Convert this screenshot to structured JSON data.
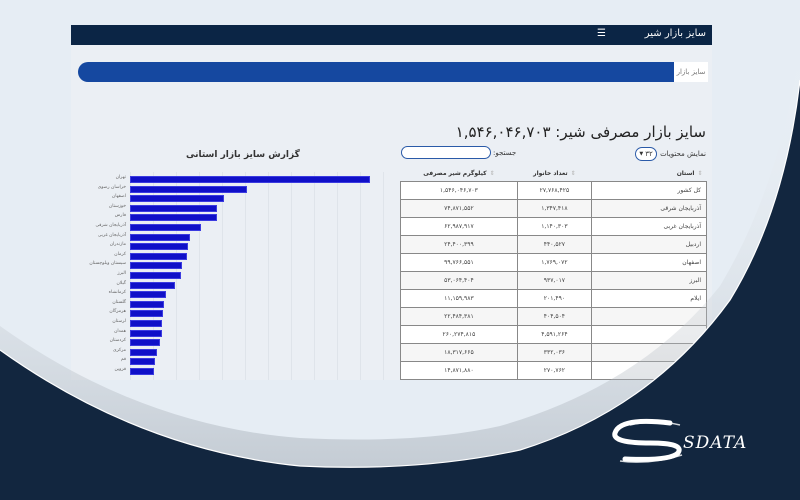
{
  "header": {
    "title": "سایز بازار شیر",
    "menu_icon": "hamburger-icon"
  },
  "breadcrumb": {
    "label": "سایز بازار"
  },
  "main": {
    "title": "سایز بازار مصرفی شیر: ۱,۵۴۶,۰۴۶,۷۰۳",
    "show_entries_label": "نمایش محتویات",
    "show_entries_value": "۳۲",
    "search_label": "جستجو:",
    "search_value": ""
  },
  "table": {
    "headers": [
      "استان",
      "تعداد خانوار",
      "کیلوگرم شیر مصرفی"
    ],
    "rows": [
      {
        "province": "کل کشور",
        "households": "۲۷,۷۶۸,۴۲۵",
        "kg": "۱,۵۴۶,۰۴۶,۷۰۳"
      },
      {
        "province": "آذربایجان شرقی",
        "households": "۱,۳۴۷,۴۱۸",
        "kg": "۷۴,۸۷۱,۵۵۲"
      },
      {
        "province": "آذربایجان غربی",
        "households": "۱,۱۴۰,۳۰۳",
        "kg": "۶۲,۹۸۷,۹۱۷"
      },
      {
        "province": "اردبیل",
        "households": "۴۴۰,۵۲۷",
        "kg": "۲۴,۴۰۰,۳۹۹"
      },
      {
        "province": "اصفهان",
        "households": "۱,۷۶۹,۰۷۲",
        "kg": "۹۹,۷۶۶,۵۵۱"
      },
      {
        "province": "البرز",
        "households": "۹۳۷,۰۱۷",
        "kg": "۵۳,۰۶۴,۴۰۴"
      },
      {
        "province": "ایلام",
        "households": "۲۰۱,۴۹۰",
        "kg": "۱۱,۱۵۹,۹۸۳"
      },
      {
        "province": "",
        "households": "۴۰۴,۵۰۴",
        "kg": "۲۲,۴۸۴,۳۸۱"
      },
      {
        "province": "",
        "households": "۴,۵۹۱,۲۶۴",
        "kg": "۲۶۰,۲۷۴,۸۱۵"
      },
      {
        "province": "",
        "households": "۳۳۲,۰۳۶",
        "kg": "۱۸,۳۱۷,۶۶۵"
      },
      {
        "province": "",
        "households": "۲۷۰,۷۶۲",
        "kg": "۱۴,۸۷۱,۸۸۰"
      }
    ]
  },
  "chart_data": {
    "type": "bar",
    "orientation": "horizontal",
    "title": "گزارش سایز بازار استانی",
    "categories": [
      "تهران",
      "خراسان رضوی",
      "اصفهان",
      "خوزستان",
      "فارس",
      "آذربایجان شرقی",
      "آذربایجان غربی",
      "مازندران",
      "کرمان",
      "سیستان وبلوچستان",
      "البرز",
      "گیلان",
      "کرمانشاه",
      "گلستان",
      "هرمزگان",
      "لرستان",
      "همدان",
      "کردستان",
      "مرکزی",
      "قم",
      "قزوین"
    ],
    "values": [
      260,
      126,
      100,
      93,
      93,
      75,
      63,
      61,
      60,
      55,
      53,
      47,
      37,
      35,
      34,
      33,
      33,
      31,
      27,
      25,
      24
    ],
    "unit": "million kg (approx.)",
    "xlabel": "",
    "ylabel": "",
    "grid": true,
    "bar_color": "#1010c8"
  },
  "branding": {
    "logo_text": "SDATA"
  },
  "colors": {
    "navy": "#0b2545",
    "breadcrumb_blue": "#1548a0",
    "deco_navy": "#12263f"
  }
}
